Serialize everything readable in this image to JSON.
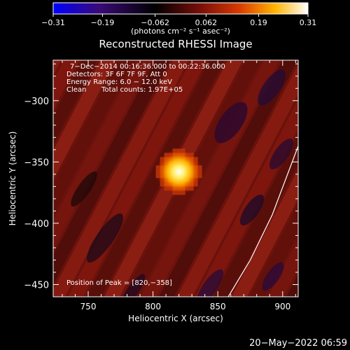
{
  "chart_data": {
    "type": "heatmap",
    "title": "Reconstructed RHESSI Image",
    "xlabel": "Heliocentric X (arcsec)",
    "ylabel": "Heliocentric Y (arcsec)",
    "xlim": [
      723,
      912
    ],
    "ylim": [
      -460,
      -267
    ],
    "x_ticks": [
      750,
      800,
      850,
      900
    ],
    "y_ticks": [
      -450,
      -400,
      -350,
      -300
    ],
    "x_tick_labels": [
      "750",
      "800",
      "850",
      "900"
    ],
    "y_tick_labels": [
      "−450",
      "−400",
      "−350",
      "−300"
    ],
    "colorbar": {
      "min": -0.31,
      "max": 0.31,
      "ticks": [
        -0.31,
        -0.19,
        -0.062,
        0.062,
        0.19,
        0.31
      ],
      "tick_labels": [
        "−0.31",
        "−0.19",
        "−0.062",
        "0.062",
        "0.19",
        "0.31"
      ],
      "unit_label": "(photons cm⁻² s⁻¹ asec⁻²)"
    },
    "annotations": {
      "time_range": "7−Dec−2014 00:16:36.000 to 00:22:36.000",
      "detectors": "Detectors: 3F 6F 7F 9F, Att 0",
      "energy_range": "Energy Range: 6.0 − 12.0 keV",
      "clean": "Clean",
      "total_counts": "Total counts: 1.97E+05",
      "peak_position": "Position of Peak = [820,−358]"
    },
    "peak": {
      "x": 820,
      "y": -358,
      "value": 0.31
    },
    "limb_curve": [
      {
        "x": 858,
        "y": -460
      },
      {
        "x": 875,
        "y": -430
      },
      {
        "x": 892,
        "y": -393
      },
      {
        "x": 912,
        "y": -337
      }
    ]
  },
  "footer": {
    "timestamp": "20−May−2022 06:59"
  },
  "colors": {
    "background": "#000000",
    "axes": "#ffffff",
    "limb_line": "#ffffff",
    "colormap": [
      "#0000ff",
      "#3a0a78",
      "#000000",
      "#7a0f0a",
      "#d83a00",
      "#ffb300",
      "#ffffff"
    ]
  }
}
